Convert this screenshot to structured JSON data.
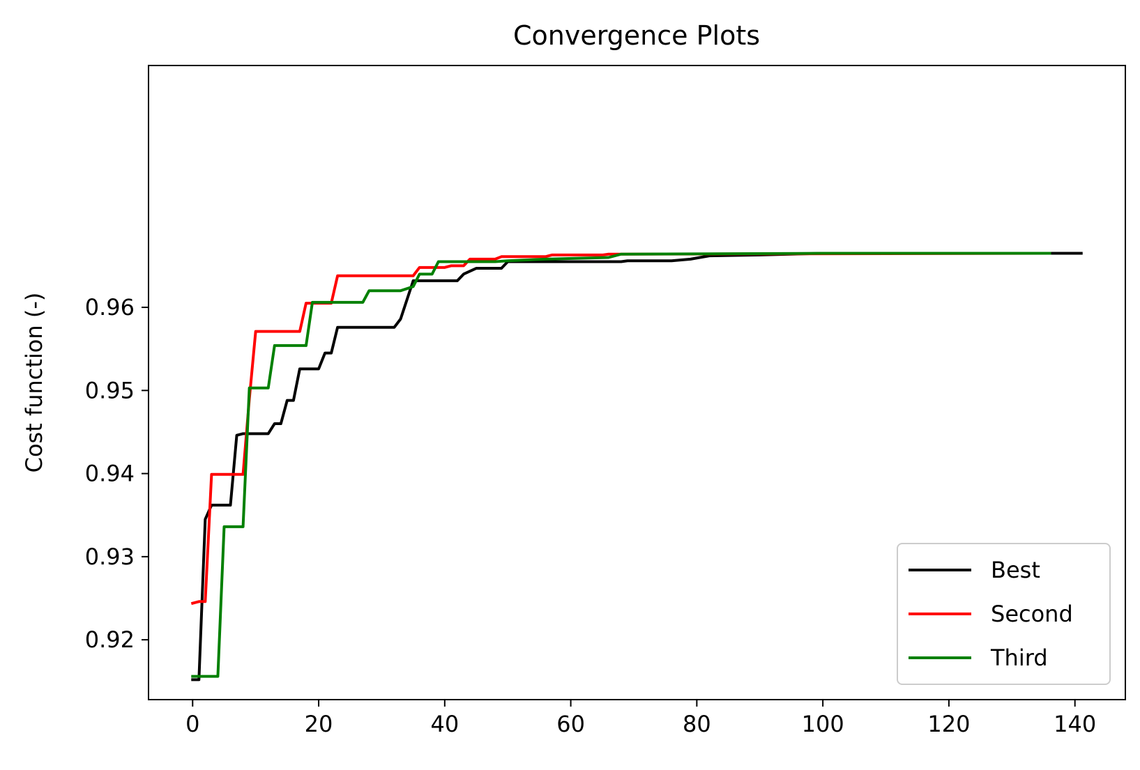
{
  "chart_data": {
    "type": "line",
    "title": "Convergence Plots",
    "xlabel": "",
    "ylabel": "Cost function (-)",
    "xlim": [
      -7,
      148
    ],
    "ylim": [
      0.9128,
      0.9891
    ],
    "xticks": [
      0,
      20,
      40,
      60,
      80,
      100,
      120,
      140
    ],
    "xtick_labels": [
      "0",
      "20",
      "40",
      "60",
      "80",
      "100",
      "120",
      "140"
    ],
    "yticks": [
      0.92,
      0.93,
      0.94,
      0.95,
      0.96
    ],
    "ytick_labels": [
      "0.92",
      "0.93",
      "0.94",
      "0.95",
      "0.96"
    ],
    "grid": false,
    "legend_position": "lower-right",
    "series": [
      {
        "name": "Best",
        "color": "#000000",
        "points": [
          [
            0,
            0.9152
          ],
          [
            1,
            0.9152
          ],
          [
            2,
            0.9345
          ],
          [
            3,
            0.9362
          ],
          [
            6,
            0.9362
          ],
          [
            7,
            0.9446
          ],
          [
            8,
            0.9448
          ],
          [
            12,
            0.9448
          ],
          [
            13,
            0.946
          ],
          [
            14,
            0.946
          ],
          [
            15,
            0.9488
          ],
          [
            16,
            0.9488
          ],
          [
            17,
            0.9526
          ],
          [
            20,
            0.9526
          ],
          [
            21,
            0.9545
          ],
          [
            22,
            0.9545
          ],
          [
            23,
            0.9576
          ],
          [
            32,
            0.9576
          ],
          [
            33,
            0.9586
          ],
          [
            35,
            0.9632
          ],
          [
            42,
            0.9632
          ],
          [
            43,
            0.964
          ],
          [
            45,
            0.9647
          ],
          [
            49,
            0.9647
          ],
          [
            50,
            0.9655
          ],
          [
            68,
            0.9655
          ],
          [
            69,
            0.9656
          ],
          [
            76,
            0.9656
          ],
          [
            79,
            0.9658
          ],
          [
            82,
            0.9662
          ],
          [
            90,
            0.9663
          ],
          [
            100,
            0.9665
          ],
          [
            141,
            0.9665
          ]
        ]
      },
      {
        "name": "Second",
        "color": "#ff0000",
        "points": [
          [
            0,
            0.9244
          ],
          [
            1,
            0.9246
          ],
          [
            2,
            0.9246
          ],
          [
            3,
            0.9399
          ],
          [
            8,
            0.9399
          ],
          [
            9,
            0.949
          ],
          [
            10,
            0.9571
          ],
          [
            17,
            0.9571
          ],
          [
            18,
            0.9605
          ],
          [
            22,
            0.9605
          ],
          [
            23,
            0.9638
          ],
          [
            35,
            0.9638
          ],
          [
            36,
            0.9648
          ],
          [
            40,
            0.9648
          ],
          [
            41,
            0.965
          ],
          [
            43,
            0.965
          ],
          [
            44,
            0.9658
          ],
          [
            48,
            0.9658
          ],
          [
            49,
            0.9661
          ],
          [
            56,
            0.9661
          ],
          [
            57,
            0.9663
          ],
          [
            65,
            0.9663
          ],
          [
            66,
            0.9664
          ],
          [
            136,
            0.9665
          ]
        ]
      },
      {
        "name": "Third",
        "color": "#008000",
        "points": [
          [
            0,
            0.9156
          ],
          [
            4,
            0.9156
          ],
          [
            5,
            0.9336
          ],
          [
            8,
            0.9336
          ],
          [
            9,
            0.9503
          ],
          [
            12,
            0.9503
          ],
          [
            13,
            0.9554
          ],
          [
            18,
            0.9554
          ],
          [
            19,
            0.9606
          ],
          [
            27,
            0.9606
          ],
          [
            28,
            0.962
          ],
          [
            33,
            0.962
          ],
          [
            35,
            0.9625
          ],
          [
            36,
            0.964
          ],
          [
            38,
            0.964
          ],
          [
            39,
            0.9655
          ],
          [
            48,
            0.9655
          ],
          [
            50,
            0.9656
          ],
          [
            56,
            0.9658
          ],
          [
            66,
            0.966
          ],
          [
            68,
            0.9664
          ],
          [
            100,
            0.9665
          ],
          [
            136,
            0.9665
          ]
        ]
      }
    ]
  }
}
